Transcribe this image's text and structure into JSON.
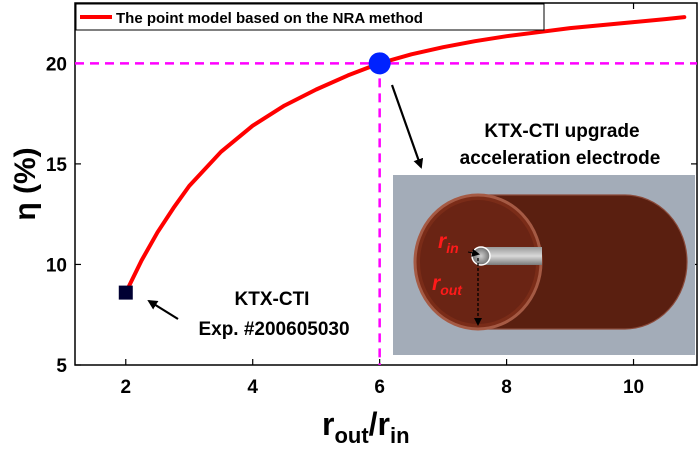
{
  "chart_data": {
    "type": "line",
    "xlabel": {
      "main": "r",
      "sub1": "out",
      "sep": "/r",
      "sub2": "in"
    },
    "ylabel": "η (%)",
    "xlim": [
      1.2,
      11.0
    ],
    "ylim": [
      5,
      23
    ],
    "xticks": [
      2,
      4,
      6,
      8,
      10
    ],
    "yticks": [
      5,
      10,
      15,
      20
    ],
    "grid": false,
    "legend_position": "top-left",
    "series": [
      {
        "name": "The point model based on the NRA method",
        "color": "#ff0000",
        "x": [
          2.0,
          2.25,
          2.5,
          2.75,
          3.0,
          3.5,
          4.0,
          4.5,
          5.0,
          5.5,
          6.0,
          6.5,
          7.0,
          7.5,
          8.0,
          8.5,
          9.0,
          9.5,
          10.0,
          10.5,
          10.8
        ],
        "y": [
          8.6,
          10.2,
          11.6,
          12.8,
          13.9,
          15.6,
          16.9,
          17.9,
          18.7,
          19.4,
          20.0,
          20.45,
          20.8,
          21.1,
          21.35,
          21.55,
          21.75,
          21.9,
          22.05,
          22.2,
          22.3
        ]
      }
    ],
    "reference_lines": {
      "x": 6,
      "y": 20,
      "color": "#ff00ff"
    },
    "markers": [
      {
        "name": "KTX-CTI Exp. #200605030",
        "x": 2,
        "y": 8.6,
        "shape": "square",
        "color": "#000033"
      },
      {
        "name": "KTX-CTI upgrade acceleration electrode",
        "x": 6,
        "y": 20,
        "shape": "circle",
        "color": "#0022ff"
      }
    ],
    "annotations": {
      "experiment_line1": "KTX-CTI",
      "experiment_line2": "Exp. #200605030",
      "upgrade_line1": "KTX-CTI upgrade",
      "upgrade_line2": "acceleration electrode"
    },
    "inset": {
      "r_in": {
        "main": "r",
        "sub": "in"
      },
      "r_out": {
        "main": "r",
        "sub": "out"
      }
    }
  }
}
